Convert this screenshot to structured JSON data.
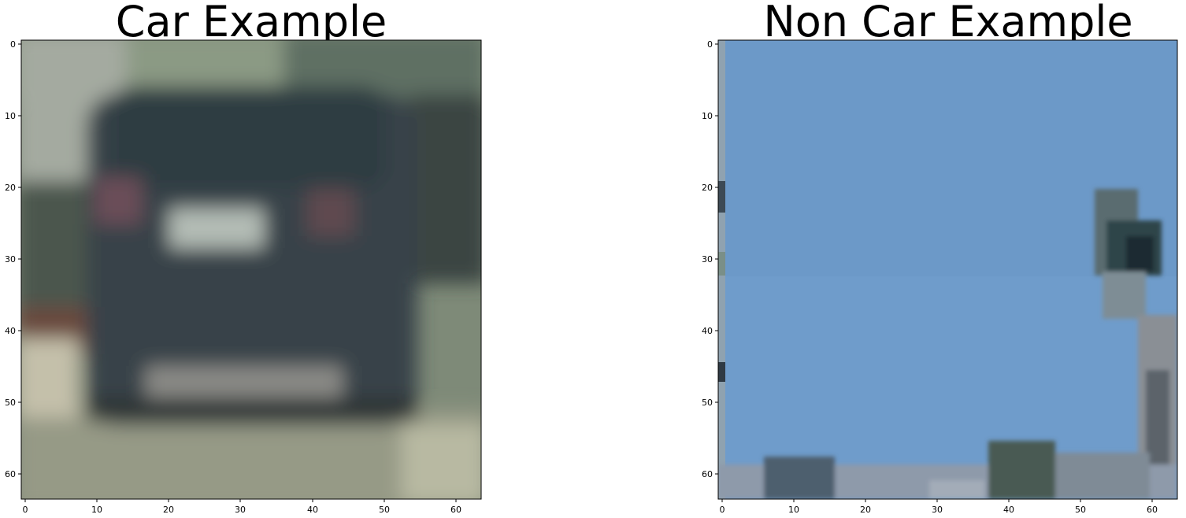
{
  "figure": {
    "panels": [
      {
        "title": "Car Example",
        "x_ticks": [
          "0",
          "10",
          "20",
          "30",
          "40",
          "50",
          "60"
        ],
        "y_ticks": [
          "0",
          "10",
          "20",
          "30",
          "40",
          "50",
          "60"
        ],
        "image_size": [
          64,
          64
        ]
      },
      {
        "title": "Non Car Example",
        "x_ticks": [
          "0",
          "10",
          "20",
          "30",
          "40",
          "50",
          "60"
        ],
        "y_ticks": [
          "0",
          "10",
          "20",
          "30",
          "40",
          "50",
          "60"
        ],
        "image_size": [
          64,
          64
        ]
      }
    ]
  }
}
